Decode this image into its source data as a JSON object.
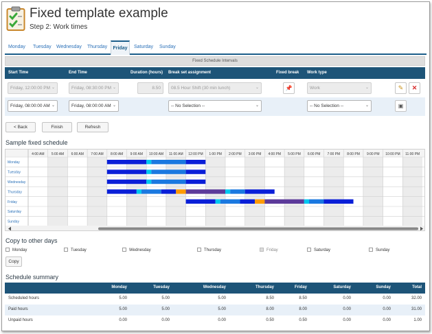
{
  "header": {
    "title": "Fixed template example",
    "subtitle": "Step 2: Work times"
  },
  "day_tabs": [
    {
      "label": "Monday"
    },
    {
      "label": "Tuesday"
    },
    {
      "label": "Wednesday"
    },
    {
      "label": "Thursday"
    },
    {
      "label": "Friday",
      "active": true
    },
    {
      "label": "Saturday"
    },
    {
      "label": "Sunday"
    }
  ],
  "intervals": {
    "section_label": "Fixed Schedule Intervals",
    "columns": [
      "Start Time",
      "End Time",
      "Duration (hours)",
      "Break set assignment",
      "Fixed break",
      "Work type"
    ],
    "existing_row": {
      "start": "Friday, 12:00:00 PM",
      "end": "Friday, 08:30:00 PM",
      "duration": "8.50",
      "break_set": "08.5 Hour Shift (30 min lunch)",
      "work_type": "Work"
    },
    "new_row": {
      "start": "Friday, 08:00:00 AM",
      "end": "Friday, 08:00:00 AM",
      "break_set": "-- No Selection --",
      "work_type": "-- No Selection --"
    }
  },
  "actions": {
    "back": "< Back",
    "finish": "Finish",
    "refresh": "Refresh"
  },
  "sample_schedule": {
    "title": "Sample fixed schedule",
    "hours": [
      "4:00 AM",
      "5:00 AM",
      "6:00 AM",
      "7:00 AM",
      "8:00 AM",
      "9:00 AM",
      "10:00 AM",
      "11:00 AM",
      "12:00 PM",
      "1:00 PM",
      "2:00 PM",
      "3:00 PM",
      "4:00 PM",
      "5:00 PM",
      "6:00 PM",
      "7:00 PM",
      "8:00 PM",
      "9:00 PM",
      "10:00 PM",
      "11:00 PM"
    ],
    "days": [
      "Monday",
      "Tuesday",
      "Wednesday",
      "Thursday",
      "Friday",
      "Saturday",
      "Sunday"
    ],
    "colors": {
      "work": "#0a1fd8",
      "break": "#00c8f0",
      "work_alt": "#1a78e0",
      "lunch": "#ff9a00",
      "purple": "#5c3a9a",
      "shade": "#ececec"
    },
    "segments": {
      "Monday": [
        [
          8,
          10,
          "work"
        ],
        [
          10,
          10.25,
          "break"
        ],
        [
          10.25,
          12,
          "work_alt"
        ],
        [
          12,
          13,
          "work"
        ]
      ],
      "Tuesday": [
        [
          8,
          10,
          "work"
        ],
        [
          10,
          10.25,
          "break"
        ],
        [
          10.25,
          12,
          "work_alt"
        ],
        [
          12,
          13,
          "work"
        ]
      ],
      "Wednesday": [
        [
          8,
          10,
          "work"
        ],
        [
          10,
          10.25,
          "break"
        ],
        [
          10.25,
          12,
          "work_alt"
        ],
        [
          12,
          13,
          "work"
        ]
      ],
      "Thursday": [
        [
          8,
          9.5,
          "work"
        ],
        [
          9.5,
          9.75,
          "break"
        ],
        [
          9.75,
          10.75,
          "work_alt"
        ],
        [
          10.75,
          11.5,
          "work"
        ],
        [
          11.5,
          12,
          "lunch"
        ],
        [
          12,
          14,
          "purple"
        ],
        [
          14,
          14.25,
          "break"
        ],
        [
          14.25,
          15,
          "work_alt"
        ],
        [
          15,
          16.5,
          "work"
        ]
      ],
      "Friday": [
        [
          12,
          13.5,
          "work"
        ],
        [
          13.5,
          13.75,
          "break"
        ],
        [
          13.75,
          14.75,
          "work_alt"
        ],
        [
          14.75,
          15.5,
          "work"
        ],
        [
          15.5,
          16,
          "lunch"
        ],
        [
          16,
          18,
          "purple"
        ],
        [
          18,
          18.25,
          "break"
        ],
        [
          18.25,
          19,
          "work_alt"
        ],
        [
          19,
          20.5,
          "work"
        ]
      ]
    }
  },
  "copy_days": {
    "title": "Copy to other days",
    "days": [
      {
        "label": "Monday"
      },
      {
        "label": "Tuesday"
      },
      {
        "label": "Wednesday"
      },
      {
        "label": "Thursday"
      },
      {
        "label": "Friday",
        "disabled": true
      },
      {
        "label": "Saturday"
      },
      {
        "label": "Sunday"
      }
    ],
    "button": "Copy"
  },
  "summary": {
    "title": "Schedule summary",
    "columns": [
      "",
      "Monday",
      "Tuesday",
      "Wednesday",
      "Thursday",
      "Friday",
      "Saturday",
      "Sunday",
      "Total"
    ],
    "rows": [
      {
        "label": "Scheduled hours",
        "values": [
          "5.00",
          "5.00",
          "5.00",
          "8.50",
          "8.50",
          "0.00",
          "0.00",
          "32.00"
        ]
      },
      {
        "label": "Paid hours",
        "values": [
          "5.00",
          "5.00",
          "5.00",
          "8.00",
          "8.00",
          "0.00",
          "0.00",
          "31.00"
        ]
      },
      {
        "label": "Unpaid hours",
        "values": [
          "0.00",
          "0.00",
          "0.00",
          "0.50",
          "0.50",
          "0.00",
          "0.00",
          "1.00"
        ]
      }
    ]
  }
}
